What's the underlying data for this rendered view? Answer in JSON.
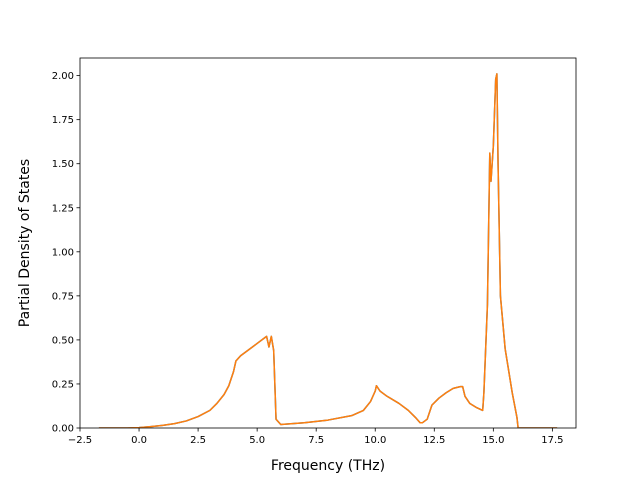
{
  "chart_data": {
    "type": "line",
    "title": "",
    "xlabel": "Frequency (THz)",
    "ylabel": "Partial Density of States",
    "xlim": [
      -2.5,
      18.5
    ],
    "ylim": [
      0.0,
      2.1
    ],
    "xticks": [
      -2.5,
      0.0,
      2.5,
      5.0,
      7.5,
      10.0,
      12.5,
      15.0,
      17.5
    ],
    "xtick_labels": [
      "−2.5",
      "0.0",
      "2.5",
      "5.0",
      "7.5",
      "10.0",
      "12.5",
      "15.0",
      "17.5"
    ],
    "yticks": [
      0.0,
      0.25,
      0.5,
      0.75,
      1.0,
      1.25,
      1.5,
      1.75,
      2.0
    ],
    "ytick_labels": [
      "0.00",
      "0.25",
      "0.50",
      "0.75",
      "1.00",
      "1.25",
      "1.50",
      "1.75",
      "2.00"
    ],
    "grid": false,
    "legend": "none",
    "series": [
      {
        "color": "#1f77b4",
        "x": [
          -1.7,
          -0.5,
          0.0,
          0.5,
          1.0,
          1.5,
          2.0,
          2.5,
          3.0,
          3.3,
          3.6,
          3.8,
          4.0,
          4.1,
          4.3,
          4.6,
          5.0,
          5.3,
          5.4,
          5.5,
          5.6,
          5.7,
          5.8,
          6.0,
          7.0,
          8.0,
          9.0,
          9.5,
          9.8,
          10.0,
          10.05,
          10.2,
          10.5,
          11.0,
          11.4,
          11.7,
          11.9,
          12.0,
          12.2,
          12.4,
          12.7,
          13.0,
          13.3,
          13.6,
          13.7,
          13.8,
          14.0,
          14.3,
          14.55,
          14.6,
          14.75,
          14.85,
          14.9,
          15.0,
          15.1,
          15.15,
          15.2,
          15.3,
          15.5,
          15.8,
          16.0,
          16.05,
          16.5,
          17.7
        ],
        "y": [
          0.0,
          0.0,
          0.002,
          0.008,
          0.015,
          0.025,
          0.04,
          0.065,
          0.1,
          0.14,
          0.19,
          0.24,
          0.32,
          0.38,
          0.41,
          0.44,
          0.48,
          0.51,
          0.52,
          0.46,
          0.52,
          0.44,
          0.05,
          0.02,
          0.03,
          0.045,
          0.07,
          0.1,
          0.15,
          0.21,
          0.24,
          0.21,
          0.18,
          0.14,
          0.1,
          0.06,
          0.03,
          0.03,
          0.05,
          0.13,
          0.17,
          0.2,
          0.225,
          0.235,
          0.235,
          0.18,
          0.14,
          0.115,
          0.1,
          0.2,
          0.7,
          1.56,
          1.4,
          1.6,
          1.98,
          2.01,
          1.5,
          0.75,
          0.45,
          0.2,
          0.06,
          0.0,
          0.0,
          0.0
        ]
      },
      {
        "color": "#ff7f0e",
        "x": [
          -1.7,
          -0.5,
          0.0,
          0.5,
          1.0,
          1.5,
          2.0,
          2.5,
          3.0,
          3.3,
          3.6,
          3.8,
          4.0,
          4.1,
          4.3,
          4.6,
          5.0,
          5.3,
          5.4,
          5.5,
          5.6,
          5.7,
          5.8,
          6.0,
          7.0,
          8.0,
          9.0,
          9.5,
          9.8,
          10.0,
          10.05,
          10.2,
          10.5,
          11.0,
          11.4,
          11.7,
          11.9,
          12.0,
          12.2,
          12.4,
          12.7,
          13.0,
          13.3,
          13.6,
          13.7,
          13.8,
          14.0,
          14.3,
          14.55,
          14.6,
          14.75,
          14.85,
          14.9,
          15.0,
          15.1,
          15.15,
          15.2,
          15.3,
          15.5,
          15.8,
          16.0,
          16.05,
          16.5,
          17.7
        ],
        "y": [
          0.0,
          0.0,
          0.002,
          0.008,
          0.015,
          0.025,
          0.04,
          0.065,
          0.1,
          0.14,
          0.19,
          0.24,
          0.32,
          0.38,
          0.41,
          0.44,
          0.48,
          0.51,
          0.52,
          0.46,
          0.52,
          0.44,
          0.05,
          0.02,
          0.03,
          0.045,
          0.07,
          0.1,
          0.15,
          0.21,
          0.24,
          0.21,
          0.18,
          0.14,
          0.1,
          0.06,
          0.03,
          0.03,
          0.05,
          0.13,
          0.17,
          0.2,
          0.225,
          0.235,
          0.235,
          0.18,
          0.14,
          0.115,
          0.1,
          0.2,
          0.7,
          1.56,
          1.4,
          1.6,
          1.98,
          2.01,
          1.5,
          0.75,
          0.45,
          0.2,
          0.06,
          0.0,
          0.0,
          0.0
        ]
      }
    ]
  }
}
